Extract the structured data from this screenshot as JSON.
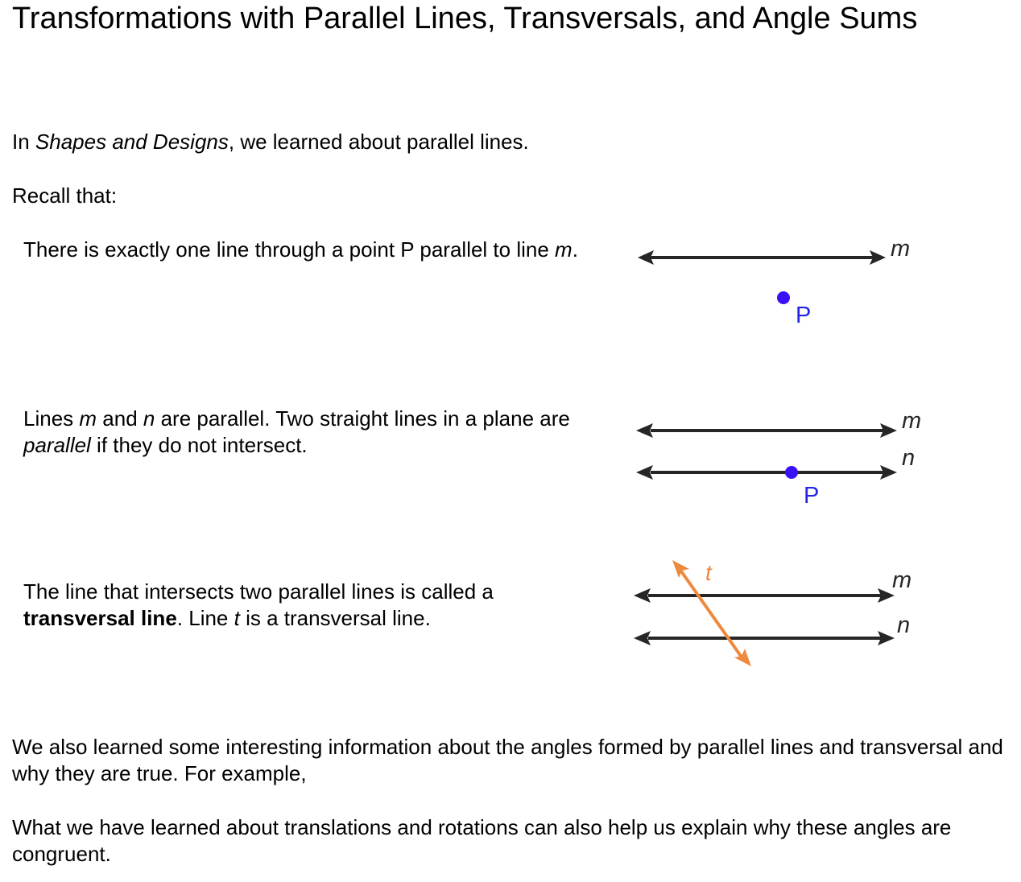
{
  "title": "Transformations with Parallel Lines, Transversals, and Angle Sums",
  "intro": {
    "before": "In ",
    "book": "Shapes and Designs",
    "after": ", we learned about parallel lines."
  },
  "recall": "Recall that:",
  "fact1": {
    "text_before": "There is exactly one line through a point P parallel to line ",
    "line_name": "m",
    "text_after": "."
  },
  "fact2": {
    "p1": "Lines ",
    "m": "m",
    "p2": " and ",
    "n": "n",
    "p3": " are parallel. Two straight lines in a plane are ",
    "parallel": "parallel",
    "p4": " if they do not intersect."
  },
  "fact3": {
    "p1": "The line that intersects two parallel lines is called a ",
    "term": "transversal line",
    "p2": ". Line ",
    "t": "t",
    "p3": " is a transversal line."
  },
  "figure1": {
    "line_label": "m",
    "point_label": "P"
  },
  "figure2": {
    "line_m_label": "m",
    "line_n_label": "n",
    "point_label": "P"
  },
  "figure3": {
    "line_m_label": "m",
    "line_n_label": "n",
    "transversal_label": "t"
  },
  "para_angles": "We also learned some interesting information about the angles formed by parallel lines and transversal and why they are true. For example,",
  "para_transformations": "What we have learned about translations and rotations can also help us explain why these angles are congruent.",
  "colors": {
    "line": "#262626",
    "point": "#3b10f5",
    "point_label": "#2424e6",
    "transversal": "#ee8a40"
  }
}
